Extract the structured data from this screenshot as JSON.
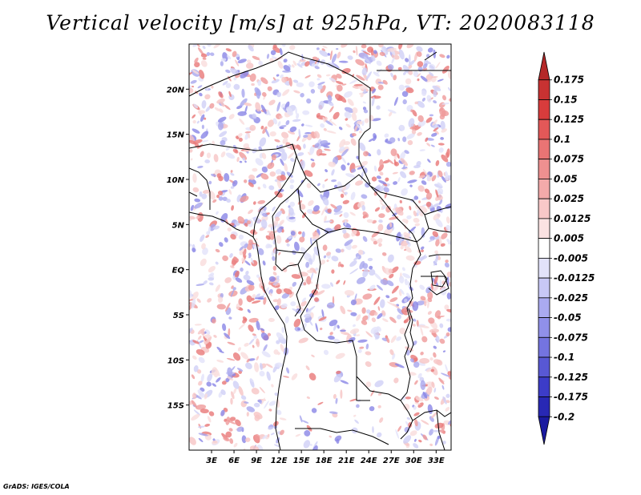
{
  "title": "Vertical velocity [m/s] at 925hPa, VT: 2020083118",
  "credit": "GrADS: IGES/COLA",
  "map": {
    "lon_range": [
      0,
      35
    ],
    "lat_range": [
      -20,
      25
    ],
    "lon_ticks": [
      "3E",
      "6E",
      "9E",
      "12E",
      "15E",
      "18E",
      "21E",
      "24E",
      "27E",
      "30E",
      "33E"
    ],
    "lat_ticks": [
      "20N",
      "15N",
      "10N",
      "5N",
      "EQ",
      "5S",
      "10S",
      "15S"
    ],
    "colors": {
      "positive": "#e8707c",
      "negative": "#7c78e6",
      "boundary": "#000000"
    }
  },
  "colorbar": {
    "labels": [
      "0.175",
      "0.15",
      "0.125",
      "0.1",
      "0.075",
      "0.05",
      "0.025",
      "0.0125",
      "0.005",
      "-0.005",
      "-0.0125",
      "-0.025",
      "-0.05",
      "-0.075",
      "-0.1",
      "-0.125",
      "-0.175",
      "-0.2"
    ],
    "colors": [
      "#b42828",
      "#c83232",
      "#d83c3c",
      "#e35858",
      "#ea7474",
      "#ef9090",
      "#f4aaaa",
      "#f8c8c8",
      "#fbe2e2",
      "#ffffff",
      "#e2e2fa",
      "#c8c8f6",
      "#aaaaf0",
      "#9090ea",
      "#7474e0",
      "#5858d4",
      "#3c3cc8",
      "#2828b4",
      "#1a1aa0"
    ]
  }
}
